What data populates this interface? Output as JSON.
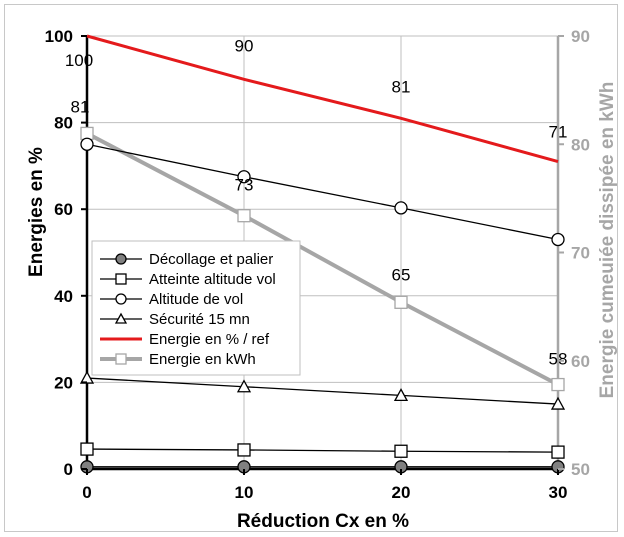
{
  "chart_data": {
    "type": "line",
    "title": "",
    "x": [
      0,
      10,
      20,
      30
    ],
    "x_tick_labels": [
      "0",
      "10",
      "20",
      "30"
    ],
    "xlabel": "Réduction Cx en %",
    "xlim": [
      0,
      30
    ],
    "ylabel": "Energies en %",
    "ylim": [
      0,
      100
    ],
    "y_ticks": [
      0,
      20,
      40,
      60,
      80,
      100
    ],
    "y_tick_labels": [
      "0",
      "20",
      "40",
      "60",
      "80",
      "100"
    ],
    "y2label": "Energie cumeuiée dissipée en kWh",
    "y2lim": [
      50,
      90
    ],
    "y2_ticks": [
      50,
      60,
      70,
      80,
      90
    ],
    "y2_tick_labels": [
      "50",
      "60",
      "70",
      "80",
      "90"
    ],
    "grid": true,
    "legend_position": "lower-left",
    "series": [
      {
        "name": "Décollage et palier",
        "axis": "left",
        "marker": "circle-filled",
        "color": "#808080",
        "stroke": "#000000",
        "values": [
          0.5,
          0.5,
          0.5,
          0.5
        ]
      },
      {
        "name": "Atteinte altitude vol",
        "axis": "left",
        "marker": "square",
        "color": "#ffffff",
        "stroke": "#000000",
        "values": [
          4.6,
          4.4,
          4.1,
          3.9
        ]
      },
      {
        "name": "Altitude de vol",
        "axis": "left",
        "marker": "circle",
        "color": "#ffffff",
        "stroke": "#000000",
        "values": [
          75,
          67.5,
          60.3,
          53
        ]
      },
      {
        "name": "Sécurité 15 mn",
        "axis": "left",
        "marker": "triangle",
        "color": "#ffffff",
        "stroke": "#000000",
        "values": [
          21,
          19,
          17,
          15
        ]
      },
      {
        "name": "Energie en % / ref",
        "axis": "left",
        "marker": "none",
        "color": "#e41a1c",
        "stroke": "#e41a1c",
        "values": [
          100,
          90,
          81,
          71
        ],
        "labels": [
          "100",
          "90",
          "81",
          "71"
        ]
      },
      {
        "name": "Energie en kWh",
        "axis": "right",
        "marker": "square",
        "color": "#ffffff",
        "stroke": "#a6a6a6",
        "values": [
          81,
          73.4,
          65.4,
          57.8
        ],
        "labels": [
          "81",
          "73",
          "65",
          "58"
        ]
      }
    ]
  }
}
